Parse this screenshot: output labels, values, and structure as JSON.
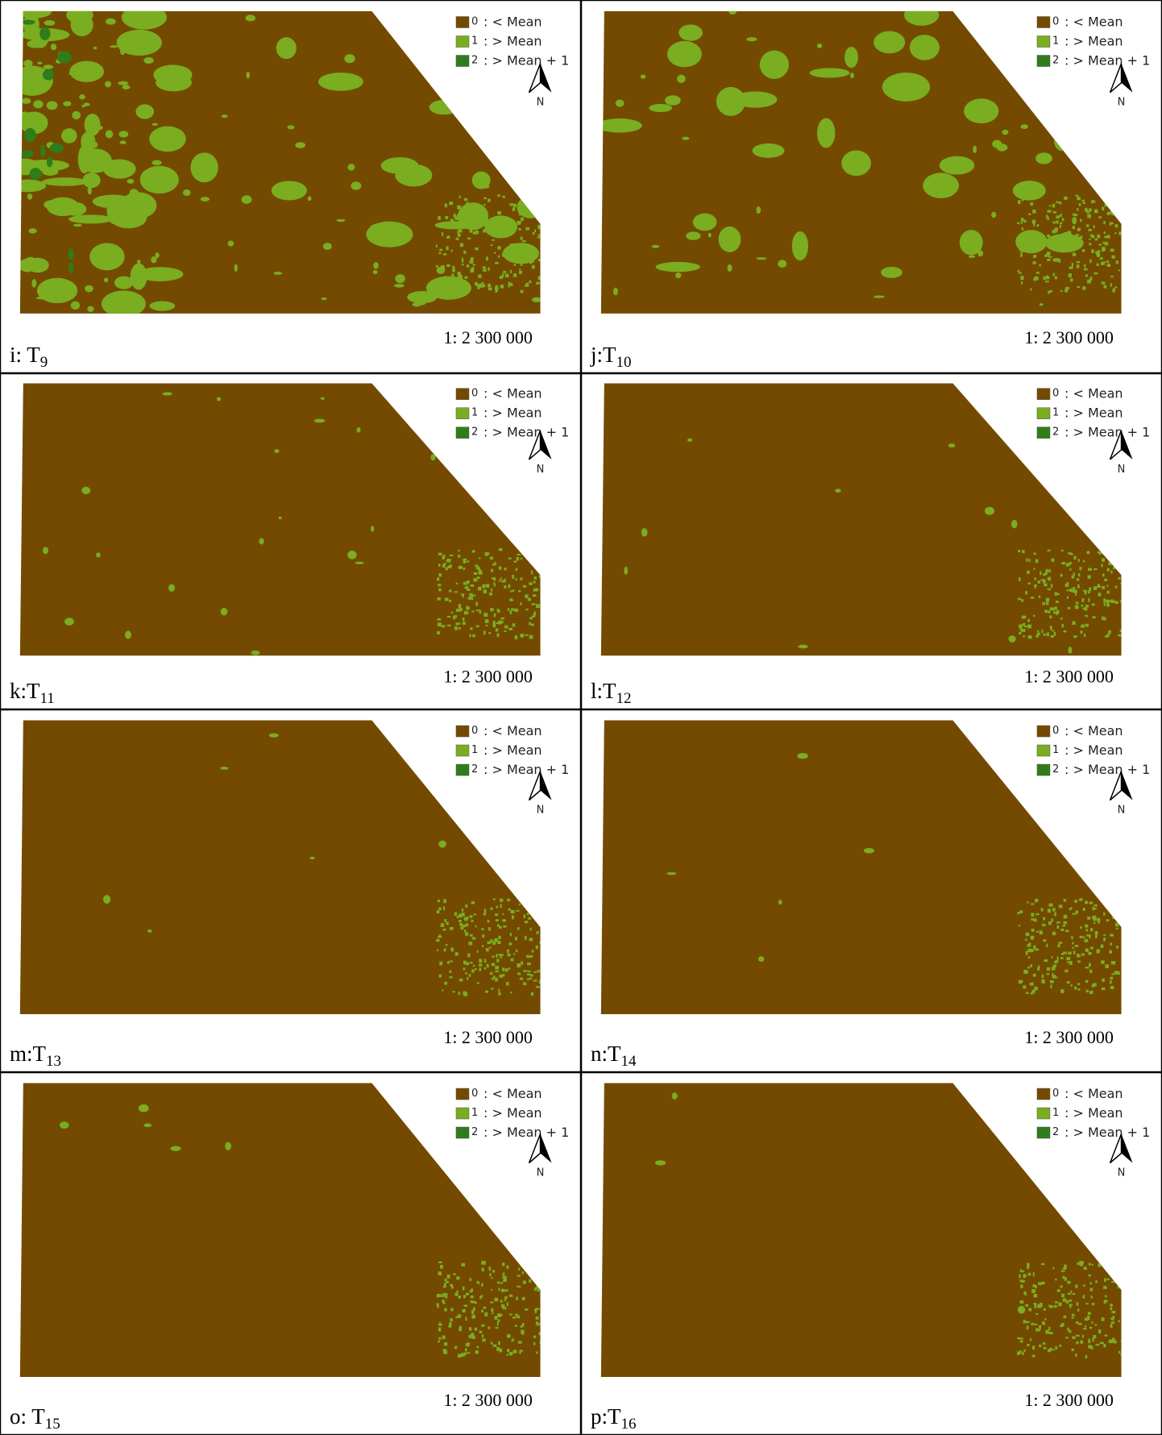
{
  "legend": [
    {
      "code": "0",
      "label": ": < Mean",
      "color": "#734a00"
    },
    {
      "code": "1",
      "label": ": > Mean",
      "color": "#7aad1f"
    },
    {
      "code": "2",
      "label": ": > Mean + 1",
      "color": "#2e7d1a"
    }
  ],
  "north": "N",
  "panels": [
    {
      "label": "i: T",
      "subscript": "9",
      "scale": "1: 2 300 000"
    },
    {
      "label": "j:T",
      "subscript": "10",
      "scale": "1: 2 300 000"
    },
    {
      "label": "k:T",
      "subscript": "11",
      "scale": "1: 2 300 000"
    },
    {
      "label": "l:T",
      "subscript": "12",
      "scale": "1: 2 300 000"
    },
    {
      "label": "m:T",
      "subscript": "13",
      "scale": "1: 2 300 000"
    },
    {
      "label": "n:T",
      "subscript": "14",
      "scale": "1: 2 300 000"
    },
    {
      "label": "o: T",
      "subscript": "15",
      "scale": "1: 2 300 000"
    },
    {
      "label": "p:T",
      "subscript": "16",
      "scale": "1: 2 300 000"
    }
  ]
}
